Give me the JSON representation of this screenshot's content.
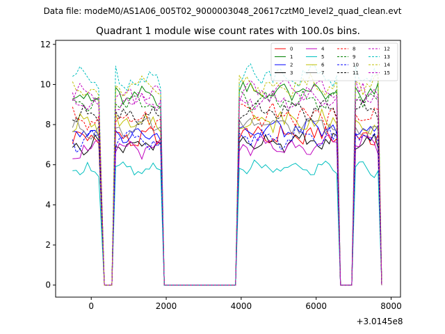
{
  "chart_data": {
    "type": "line",
    "suptitle": "Data file: modeM0/AS1A06_005T02_9000003048_20617cztM0_level2_quad_clean.evt",
    "title": "Quadrant 1 module wise count rates with 100.0s bins.",
    "x_offset_label": "+3.0145e8",
    "xlim": [
      -950,
      8250
    ],
    "ylim": [
      -0.6,
      12.2
    ],
    "xticks": [
      0,
      2000,
      4000,
      6000,
      8000
    ],
    "xtick_labels": [
      "0",
      "2000",
      "4000",
      "6000",
      "8000"
    ],
    "yticks": [
      0,
      2,
      4,
      6,
      8,
      10,
      12
    ],
    "ytick_labels": [
      "0",
      "2",
      "4",
      "6",
      "8",
      "10",
      "12"
    ],
    "series": [
      {
        "name": "0",
        "color": "#ff0000",
        "dash": "solid",
        "base": 7.3,
        "amp": 0.4
      },
      {
        "name": "1",
        "color": "#008000",
        "dash": "solid",
        "base": 9.4,
        "amp": 0.35
      },
      {
        "name": "2",
        "color": "#0000ff",
        "dash": "solid",
        "base": 7.6,
        "amp": 0.35
      },
      {
        "name": "3",
        "color": "#000000",
        "dash": "solid",
        "base": 7.0,
        "amp": 0.3
      },
      {
        "name": "4",
        "color": "#bf00bf",
        "dash": "solid",
        "base": 6.8,
        "amp": 0.35
      },
      {
        "name": "5",
        "color": "#00bfbf",
        "dash": "solid",
        "base": 5.7,
        "amp": 0.25
      },
      {
        "name": "6",
        "color": "#bfbf00",
        "dash": "solid",
        "base": 8.0,
        "amp": 0.4
      },
      {
        "name": "7",
        "color": "#808080",
        "dash": "solid",
        "base": 7.8,
        "amp": 0.35
      },
      {
        "name": "8",
        "color": "#ff0000",
        "dash": "dashed",
        "base": 8.3,
        "amp": 0.4
      },
      {
        "name": "9",
        "color": "#008000",
        "dash": "dashed",
        "base": 9.0,
        "amp": 0.35
      },
      {
        "name": "10",
        "color": "#0000ff",
        "dash": "dashed",
        "base": 7.2,
        "amp": 0.35
      },
      {
        "name": "11",
        "color": "#000000",
        "dash": "dashed",
        "base": 8.5,
        "amp": 0.35
      },
      {
        "name": "12",
        "color": "#bf00bf",
        "dash": "dashed",
        "base": 9.5,
        "amp": 0.4
      },
      {
        "name": "13",
        "color": "#00bfbf",
        "dash": "dashed",
        "base": 10.3,
        "amp": 0.45
      },
      {
        "name": "14",
        "color": "#bfbf00",
        "dash": "dashed",
        "base": 9.8,
        "amp": 0.4
      },
      {
        "name": "15",
        "color": "#bf00bf",
        "dash": "dashed",
        "base": 9.1,
        "amp": 0.35
      }
    ],
    "time_segments": [
      {
        "start": -500,
        "end": 250,
        "active": true
      },
      {
        "start": 350,
        "end": 550,
        "active": false
      },
      {
        "start": 650,
        "end": 1850,
        "active": true
      },
      {
        "start": 1950,
        "end": 3850,
        "active": false
      },
      {
        "start": 3950,
        "end": 6550,
        "active": true
      },
      {
        "start": 6650,
        "end": 6950,
        "active": false
      },
      {
        "start": 7050,
        "end": 7650,
        "active": true
      },
      {
        "start": 7750,
        "end": 7750,
        "active": false
      }
    ],
    "bin_size_s": 100,
    "legend_location": "top-right"
  }
}
